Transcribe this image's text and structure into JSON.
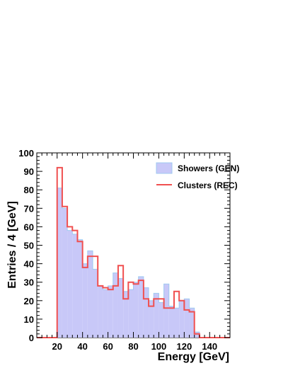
{
  "chart_data": {
    "type": "bar",
    "title": "",
    "xlabel": "Energy [GeV]",
    "ylabel": "Entries / 4 [GeV]",
    "xlim": [
      4,
      156
    ],
    "ylim": [
      0,
      100
    ],
    "x_ticks": [
      20,
      40,
      60,
      80,
      100,
      120,
      140
    ],
    "y_ticks": [
      0,
      10,
      20,
      30,
      40,
      50,
      60,
      70,
      80,
      90,
      100
    ],
    "bin_edges_start": 20,
    "bin_width": 4,
    "grid": false,
    "legend_position": "top-right",
    "series": [
      {
        "name": "Showers (GEN)",
        "style": "filled",
        "fill_color": "#c8c8f8",
        "line_color": "#9fc9f0",
        "values": [
          81,
          70,
          58,
          56,
          53,
          40,
          47,
          37,
          28,
          26,
          28,
          35,
          32,
          25,
          26,
          30,
          33,
          27,
          20,
          24,
          19,
          29,
          17,
          16,
          20,
          21,
          16,
          3
        ]
      },
      {
        "name": "Clusters (REC)",
        "style": "step",
        "line_color": "#f05050",
        "values": [
          92,
          71,
          60,
          58,
          52,
          38,
          44,
          44,
          28,
          27,
          26,
          28,
          39,
          21,
          30,
          29,
          31,
          21,
          17,
          21,
          21,
          16,
          16,
          25,
          20,
          15,
          14,
          2
        ]
      }
    ]
  }
}
